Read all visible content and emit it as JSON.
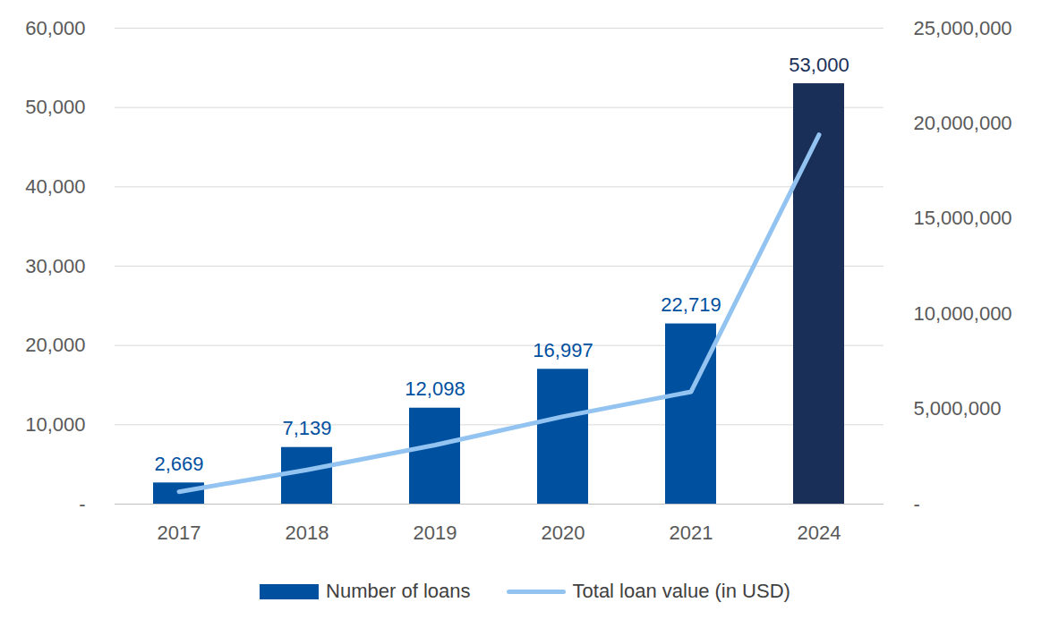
{
  "chart_data": {
    "type": "bar",
    "categories": [
      "2017",
      "2018",
      "2019",
      "2020",
      "2021",
      "2024"
    ],
    "series": [
      {
        "name": "Number of loans",
        "type": "bar",
        "colors": [
          "#0050a0",
          "#0050a0",
          "#0050a0",
          "#0050a0",
          "#0050a0",
          "#1a2f58"
        ],
        "values": [
          2669,
          7139,
          12098,
          16997,
          22719,
          53000
        ],
        "value_labels": [
          "2,669",
          "7,139",
          "12,098",
          "16,997",
          "22,719",
          "53,000"
        ]
      },
      {
        "name": "Total loan value (in USD)",
        "type": "line",
        "axis": "y2",
        "color": "#93c3f0",
        "values": [
          650000,
          1800000,
          3100000,
          4600000,
          5900000,
          19400000
        ]
      }
    ],
    "ylim": [
      0,
      60000
    ],
    "yticks": [
      {
        "value": 0,
        "label": "-"
      },
      {
        "value": 10000,
        "label": "10,000"
      },
      {
        "value": 20000,
        "label": "20,000"
      },
      {
        "value": 30000,
        "label": "30,000"
      },
      {
        "value": 40000,
        "label": "40,000"
      },
      {
        "value": 50000,
        "label": "50,000"
      },
      {
        "value": 60000,
        "label": "60,000"
      }
    ],
    "y2lim": [
      0,
      25000000
    ],
    "y2ticks": [
      {
        "value": 0,
        "label": "-"
      },
      {
        "value": 5000000,
        "label": "5,000,000"
      },
      {
        "value": 10000000,
        "label": "10,000,000"
      },
      {
        "value": 15000000,
        "label": "15,000,000"
      },
      {
        "value": 20000000,
        "label": "20,000,000"
      },
      {
        "value": 25000000,
        "label": "25,000,000"
      }
    ],
    "grid": true,
    "legend": "bottom",
    "data_labels": true
  }
}
